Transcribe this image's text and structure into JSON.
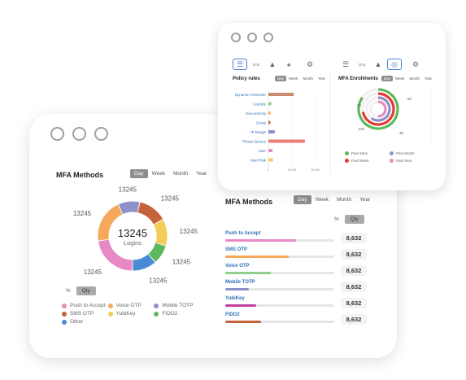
{
  "back_window": {
    "left_panel": {
      "title": "MFA Methods",
      "range_tabs": [
        "Day",
        "Week",
        "Month",
        "Year"
      ],
      "active_range": "Day",
      "center_value": "13245",
      "center_label": "Logins",
      "toggle": [
        "%",
        "Qty"
      ],
      "active_toggle": "Qty",
      "segment_label": "13245",
      "segments": [
        {
          "name": "Push to Accept",
          "value": 20,
          "color": "#e78ac3"
        },
        {
          "name": "Voice OTP",
          "value": 18,
          "color": "#f5a85a"
        },
        {
          "name": "Mobile TOTP",
          "value": 9,
          "color": "#8e91c8"
        },
        {
          "name": "SMS OTP",
          "value": 12,
          "color": "#c5623c"
        },
        {
          "name": "YubiKey",
          "value": 11,
          "color": "#f2cc5a"
        },
        {
          "name": "FIDO2",
          "value": 8,
          "color": "#5cb85c"
        },
        {
          "name": "Other",
          "value": 10,
          "color": "#4a8bd6"
        }
      ],
      "legend": [
        {
          "name": "Push to Accept",
          "color": "#e78ac3"
        },
        {
          "name": "Voice OTP",
          "color": "#f5a85a"
        },
        {
          "name": "Mobile TOTP",
          "color": "#8e91c8"
        },
        {
          "name": "SMS OTP",
          "color": "#c5623c"
        },
        {
          "name": "YubiKey",
          "color": "#f2cc5a"
        },
        {
          "name": "FIDO2",
          "color": "#5cb85c"
        },
        {
          "name": "Other",
          "color": "#4a8bd6"
        }
      ]
    },
    "right_panel": {
      "title": "MFA Methods",
      "range_tabs": [
        "Day",
        "Week",
        "Month",
        "Year"
      ],
      "active_range": "Day",
      "toggle": [
        "%",
        "Qty"
      ],
      "active_toggle": "Qty",
      "methods": [
        {
          "name": "Push to Accept",
          "value": "8,632",
          "fraction": 0.65,
          "color": "#e78ac3"
        },
        {
          "name": "SMS OTP",
          "value": "8,632",
          "fraction": 0.58,
          "color": "#f5a85a"
        },
        {
          "name": "Voice OTP",
          "value": "8,632",
          "fraction": 0.42,
          "color": "#8fcf8a"
        },
        {
          "name": "Mobile TOTP",
          "value": "8,632",
          "fraction": 0.22,
          "color": "#8e91c8"
        },
        {
          "name": "YubiKey",
          "value": "8,632",
          "fraction": 0.28,
          "color": "#c23fa0"
        },
        {
          "name": "FIDO2",
          "value": "8,632",
          "fraction": 0.33,
          "color": "#c5623c"
        }
      ]
    }
  },
  "front_window": {
    "policy_panel": {
      "title": "Policy rules",
      "range_tabs": [
        "Day",
        "Week",
        "Month",
        "Year"
      ],
      "active_range": "Day",
      "icons": [
        "bar-chart-icon",
        "line-chart-icon",
        "area-chart-icon",
        "pie-chart-icon",
        "gear-icon"
      ],
      "axis_ticks": [
        "0",
        "10,000",
        "20,000"
      ],
      "rules": [
        {
          "name": "Dynamic Perimeter",
          "value": 0.43,
          "color": "#c98a6e"
        },
        {
          "name": "Country",
          "value": 0.05,
          "color": "#8fcf8a"
        },
        {
          "name": "Geo-velocity",
          "value": 0.02,
          "color": "#f5a85a"
        },
        {
          "name": "Group",
          "value": 0.02,
          "color": "#c5623c"
        },
        {
          "name": "IP Range",
          "value": 0.11,
          "color": "#8e91c8"
        },
        {
          "name": "Threat Service",
          "value": 0.62,
          "color": "#ef7b7b"
        },
        {
          "name": "User",
          "value": 0.07,
          "color": "#e78ac3"
        },
        {
          "name": "User Risk",
          "value": 0.08,
          "color": "#f2cc5a"
        }
      ]
    },
    "enrollment_panel": {
      "title": "MFA Enrollments",
      "range_tabs": [
        "Day",
        "Week",
        "Month",
        "Year"
      ],
      "active_range": "Day",
      "icons": [
        "bar-chart-icon",
        "line-chart-icon",
        "area-chart-icon",
        "donut-chart-icon",
        "gear-icon"
      ],
      "ring_labels": [
        "60",
        "12",
        "210",
        "36"
      ],
      "rings": [
        {
          "name": "Past 24hs",
          "fraction": 0.85,
          "color": "#5cb85c"
        },
        {
          "name": "Past Week",
          "fraction": 0.72,
          "color": "#e53935"
        },
        {
          "name": "Past Month",
          "fraction": 0.6,
          "color": "#8e91c8"
        },
        {
          "name": "Past Year",
          "fraction": 0.5,
          "color": "#e78ac3"
        }
      ],
      "legend": [
        {
          "name": "Past 24hs",
          "color": "#5cb85c"
        },
        {
          "name": "Past Month",
          "color": "#8e91c8"
        },
        {
          "name": "Past Week",
          "color": "#e53935"
        },
        {
          "name": "Past Year",
          "color": "#e78ac3"
        }
      ]
    }
  }
}
